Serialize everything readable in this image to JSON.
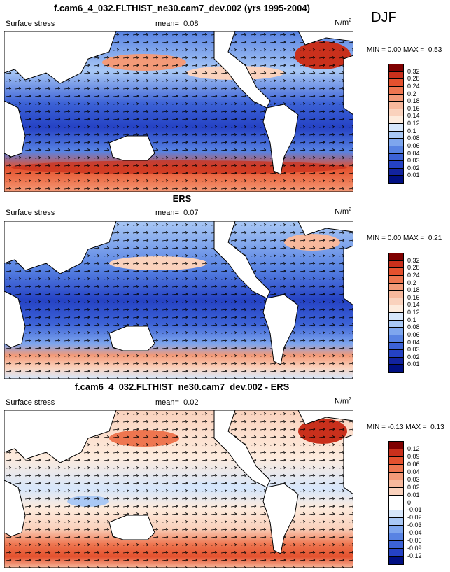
{
  "season": "DJF",
  "panels": [
    {
      "title": "f.cam6_4_032.FLTHIST_ne30.cam7_dev.002 (yrs 1995-2004)",
      "variable": "Surface stress",
      "mean_label": "mean=",
      "mean_value": "0.08",
      "units": "N/m",
      "units_sup": "2",
      "min_label": "MIN =",
      "min_value": "0.00",
      "max_label": "MAX =",
      "max_value": "0.53",
      "levels": [
        "0.32",
        "0.28",
        "0.24",
        "0.2",
        "0.18",
        "0.16",
        "0.14",
        "0.12",
        "0.1",
        "0.08",
        "0.06",
        "0.04",
        "0.03",
        "0.02",
        "0.01"
      ]
    },
    {
      "title": "ERS",
      "variable": "Surface stress",
      "mean_label": "mean=",
      "mean_value": "0.07",
      "units": "N/m",
      "units_sup": "2",
      "min_label": "MIN =",
      "min_value": "0.00",
      "max_label": "MAX =",
      "max_value": "0.21",
      "levels": [
        "0.32",
        "0.28",
        "0.24",
        "0.2",
        "0.18",
        "0.16",
        "0.14",
        "0.12",
        "0.1",
        "0.08",
        "0.06",
        "0.04",
        "0.03",
        "0.02",
        "0.01"
      ]
    },
    {
      "title": "f.cam6_4_032.FLTHIST_ne30.cam7_dev.002 - ERS",
      "variable": "Surface stress",
      "mean_label": "mean=",
      "mean_value": "0.02",
      "units": "N/m",
      "units_sup": "2",
      "min_label": "MIN =",
      "min_value": "-0.13",
      "max_label": "MAX =",
      "max_value": "0.13",
      "levels": [
        "0.12",
        "0.09",
        "0.06",
        "0.04",
        "0.03",
        "0.02",
        "0.01",
        "0",
        "-0.01",
        "-0.02",
        "-0.03",
        "-0.04",
        "-0.06",
        "-0.09",
        "-0.12"
      ]
    }
  ],
  "colors": {
    "abs_scale": [
      "#7f0000",
      "#c9301c",
      "#e4512e",
      "#ee7650",
      "#f39a78",
      "#f7b89c",
      "#fad2bd",
      "#fdebdd",
      "#d6e6fb",
      "#a9c8f5",
      "#7ea6ee",
      "#5883e3",
      "#3c62d6",
      "#2542c4",
      "#12239f",
      "#000f82"
    ],
    "diff_scale": [
      "#7f0000",
      "#c9301c",
      "#e4512e",
      "#ee7650",
      "#f39a78",
      "#f7b89c",
      "#fad2bd",
      "#ffffff",
      "#ffffff",
      "#d6e6fb",
      "#a9c8f5",
      "#7ea6ee",
      "#5883e3",
      "#3c62d6",
      "#2542c4",
      "#000f82"
    ]
  }
}
